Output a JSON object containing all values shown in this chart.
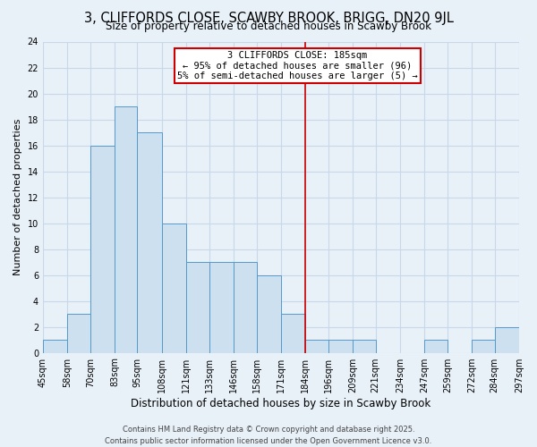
{
  "title": "3, CLIFFORDS CLOSE, SCAWBY BROOK, BRIGG, DN20 9JL",
  "subtitle": "Size of property relative to detached houses in Scawby Brook",
  "xlabel": "Distribution of detached houses by size in Scawby Brook",
  "ylabel": "Number of detached properties",
  "bin_edges": [
    45,
    58,
    70,
    83,
    95,
    108,
    121,
    133,
    146,
    158,
    171,
    184,
    196,
    209,
    221,
    234,
    247,
    259,
    272,
    284,
    297
  ],
  "bar_heights": [
    1,
    3,
    16,
    19,
    17,
    10,
    7,
    7,
    7,
    6,
    3,
    1,
    1,
    1,
    0,
    0,
    1,
    0,
    1,
    2
  ],
  "bar_facecolor": "#cce0f0",
  "bar_edgecolor": "#5599cc",
  "vline_x": 184,
  "vline_color": "#cc0000",
  "annotation_title": "3 CLIFFORDS CLOSE: 185sqm",
  "annotation_line1": "← 95% of detached houses are smaller (96)",
  "annotation_line2": "5% of semi-detached houses are larger (5) →",
  "annotation_box_edgecolor": "#cc0000",
  "annotation_box_facecolor": "#ffffff",
  "ylim": [
    0,
    24
  ],
  "yticks": [
    0,
    2,
    4,
    6,
    8,
    10,
    12,
    14,
    16,
    18,
    20,
    22,
    24
  ],
  "grid_color": "#c8d8e8",
  "background_color": "#e8f0f8",
  "footer_line1": "Contains HM Land Registry data © Crown copyright and database right 2025.",
  "footer_line2": "Contains public sector information licensed under the Open Government Licence v3.0.",
  "title_fontsize": 10.5,
  "subtitle_fontsize": 8.5,
  "xlabel_fontsize": 8.5,
  "ylabel_fontsize": 8,
  "tick_fontsize": 7,
  "footer_fontsize": 6,
  "ann_fontsize": 7.5
}
